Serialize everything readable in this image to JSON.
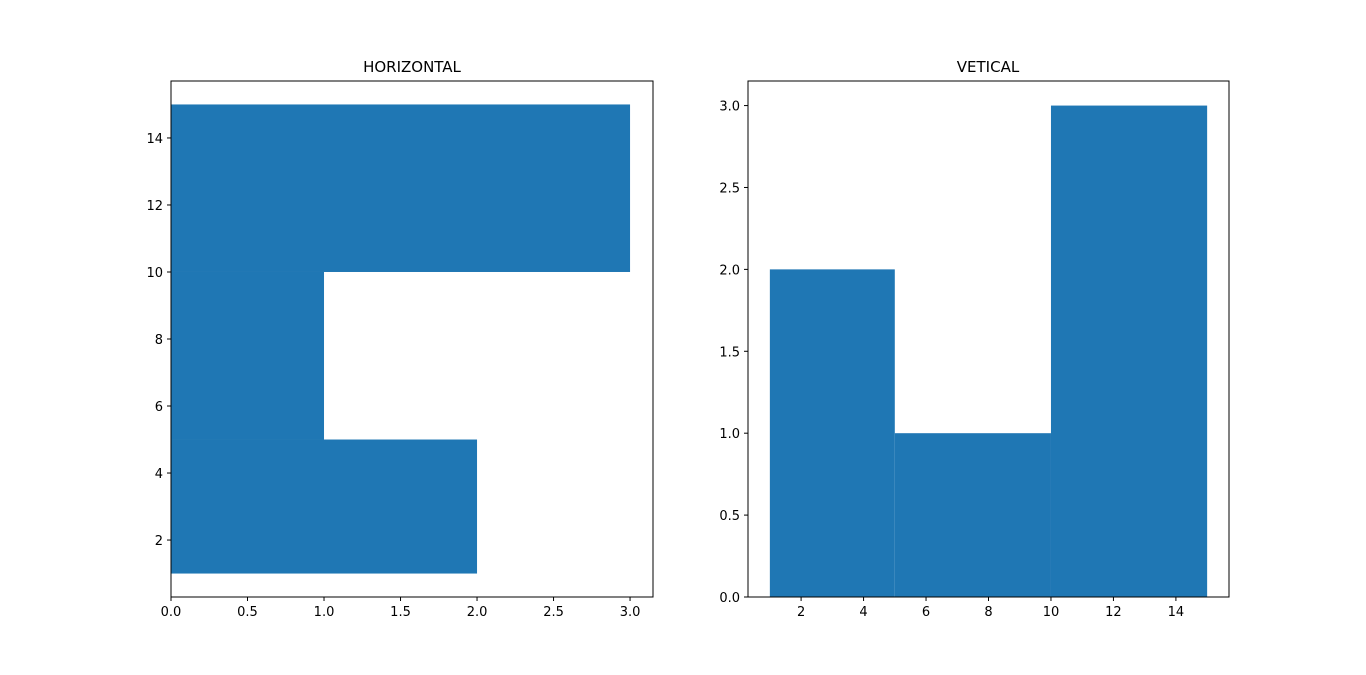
{
  "colors": {
    "bar": "#1f77b4",
    "axes": "#000000",
    "background": "#ffffff"
  },
  "chart_data": [
    {
      "type": "bar",
      "orientation": "horizontal",
      "title": "HORIZONTAL",
      "xlabel": "",
      "ylabel": "",
      "bars": [
        {
          "y_from": 1,
          "y_to": 5,
          "value": 2
        },
        {
          "y_from": 5,
          "y_to": 10,
          "value": 1
        },
        {
          "y_from": 10,
          "y_to": 15,
          "value": 3
        }
      ],
      "xlim": [
        0,
        3.15
      ],
      "ylim": [
        0.3,
        15.7
      ],
      "xticks": [
        0.0,
        0.5,
        1.0,
        1.5,
        2.0,
        2.5,
        3.0
      ],
      "xtick_labels": [
        "0.0",
        "0.5",
        "1.0",
        "1.5",
        "2.0",
        "2.5",
        "3.0"
      ],
      "yticks": [
        2,
        4,
        6,
        8,
        10,
        12,
        14
      ],
      "ytick_labels": [
        "2",
        "4",
        "6",
        "8",
        "10",
        "12",
        "14"
      ],
      "grid": false,
      "legend": "none"
    },
    {
      "type": "bar",
      "orientation": "vertical",
      "title": "VETICAL",
      "xlabel": "",
      "ylabel": "",
      "bars": [
        {
          "x_from": 1,
          "x_to": 5,
          "value": 2
        },
        {
          "x_from": 5,
          "x_to": 10,
          "value": 1
        },
        {
          "x_from": 10,
          "x_to": 15,
          "value": 3
        }
      ],
      "xlim": [
        0.3,
        15.7
      ],
      "ylim": [
        0,
        3.15
      ],
      "xticks": [
        2,
        4,
        6,
        8,
        10,
        12,
        14
      ],
      "xtick_labels": [
        "2",
        "4",
        "6",
        "8",
        "10",
        "12",
        "14"
      ],
      "yticks": [
        0.0,
        0.5,
        1.0,
        1.5,
        2.0,
        2.5,
        3.0
      ],
      "ytick_labels": [
        "0.0",
        "0.5",
        "1.0",
        "1.5",
        "2.0",
        "2.5",
        "3.0"
      ],
      "grid": false,
      "legend": "none"
    }
  ]
}
